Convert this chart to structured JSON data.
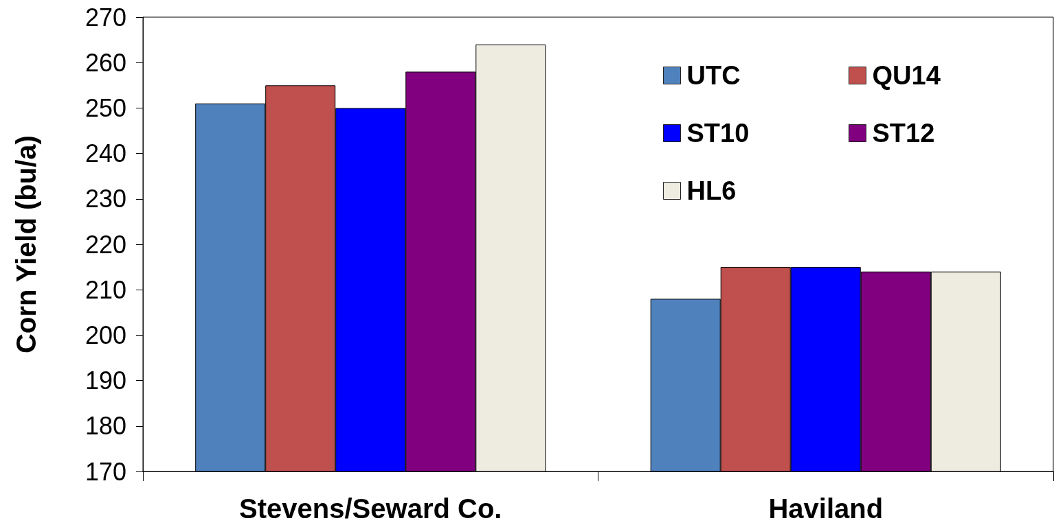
{
  "chart_data": {
    "type": "bar",
    "categories": [
      "Stevens/Seward Co.",
      "Haviland"
    ],
    "ylabel": "Corn Yield (bu/a)",
    "series": [
      {
        "name": "UTC",
        "color": "#4f81bd",
        "values": [
          251,
          208
        ]
      },
      {
        "name": "QU14",
        "color": "#c0504d",
        "values": [
          255,
          215
        ]
      },
      {
        "name": "ST10",
        "color": "#0000ff",
        "values": [
          250,
          215
        ]
      },
      {
        "name": "ST12",
        "color": "#800080",
        "values": [
          258,
          214
        ]
      },
      {
        "name": "HL6",
        "color": "#eeece1",
        "values": [
          264,
          214
        ]
      }
    ],
    "ylim": [
      170,
      270
    ],
    "yticks": [
      170,
      180,
      190,
      200,
      210,
      220,
      230,
      240,
      250,
      260,
      270
    ],
    "grid": false,
    "legend": "top right"
  }
}
